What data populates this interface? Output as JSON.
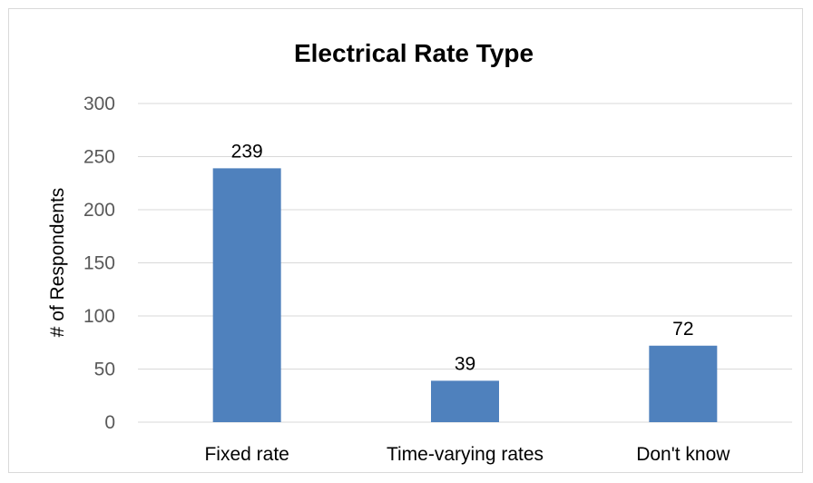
{
  "chart_data": {
    "type": "bar",
    "title": "Electrical Rate Type",
    "xlabel": "",
    "ylabel": "# of Respondents",
    "categories": [
      "Fixed rate",
      "Time-varying rates",
      "Don't know"
    ],
    "values": [
      239,
      39,
      72
    ],
    "data_labels": [
      "239",
      "39",
      "72"
    ],
    "ylim": [
      0,
      300
    ],
    "yticks": [
      0,
      50,
      100,
      150,
      200,
      250,
      300
    ],
    "ytick_labels": [
      "0",
      "50",
      "100",
      "150",
      "200",
      "250",
      "300"
    ],
    "grid": true,
    "legend": "none",
    "bar_color": "#4f81bd",
    "grid_color": "#d9d9d9"
  }
}
